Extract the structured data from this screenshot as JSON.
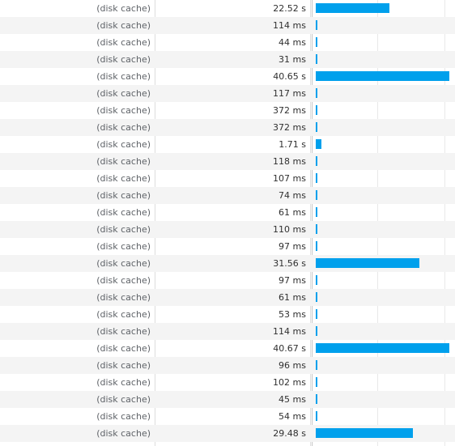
{
  "network": {
    "rows": [
      {
        "size": "(disk cache)",
        "time": "22.52 s",
        "duration_s": 22.52
      },
      {
        "size": "(disk cache)",
        "time": "114 ms",
        "duration_s": 0.114
      },
      {
        "size": "(disk cache)",
        "time": "44 ms",
        "duration_s": 0.044
      },
      {
        "size": "(disk cache)",
        "time": "31 ms",
        "duration_s": 0.031
      },
      {
        "size": "(disk cache)",
        "time": "40.65 s",
        "duration_s": 40.65
      },
      {
        "size": "(disk cache)",
        "time": "117 ms",
        "duration_s": 0.117
      },
      {
        "size": "(disk cache)",
        "time": "372 ms",
        "duration_s": 0.372
      },
      {
        "size": "(disk cache)",
        "time": "372 ms",
        "duration_s": 0.372
      },
      {
        "size": "(disk cache)",
        "time": "1.71 s",
        "duration_s": 1.71
      },
      {
        "size": "(disk cache)",
        "time": "118 ms",
        "duration_s": 0.118
      },
      {
        "size": "(disk cache)",
        "time": "107 ms",
        "duration_s": 0.107
      },
      {
        "size": "(disk cache)",
        "time": "74 ms",
        "duration_s": 0.074
      },
      {
        "size": "(disk cache)",
        "time": "61 ms",
        "duration_s": 0.061
      },
      {
        "size": "(disk cache)",
        "time": "110 ms",
        "duration_s": 0.11
      },
      {
        "size": "(disk cache)",
        "time": "97 ms",
        "duration_s": 0.097
      },
      {
        "size": "(disk cache)",
        "time": "31.56 s",
        "duration_s": 31.56
      },
      {
        "size": "(disk cache)",
        "time": "97 ms",
        "duration_s": 0.097
      },
      {
        "size": "(disk cache)",
        "time": "61 ms",
        "duration_s": 0.061
      },
      {
        "size": "(disk cache)",
        "time": "53 ms",
        "duration_s": 0.053
      },
      {
        "size": "(disk cache)",
        "time": "114 ms",
        "duration_s": 0.114
      },
      {
        "size": "(disk cache)",
        "time": "40.67 s",
        "duration_s": 40.67
      },
      {
        "size": "(disk cache)",
        "time": "96 ms",
        "duration_s": 0.096
      },
      {
        "size": "(disk cache)",
        "time": "102 ms",
        "duration_s": 0.102
      },
      {
        "size": "(disk cache)",
        "time": "45 ms",
        "duration_s": 0.045
      },
      {
        "size": "(disk cache)",
        "time": "54 ms",
        "duration_s": 0.054
      },
      {
        "size": "(disk cache)",
        "time": "29.48 s",
        "duration_s": 29.48
      }
    ]
  },
  "colors": {
    "waterfall_bar": "#00a0ec",
    "row_alt_background": "#f4f4f4",
    "divider": "#dddddd"
  }
}
